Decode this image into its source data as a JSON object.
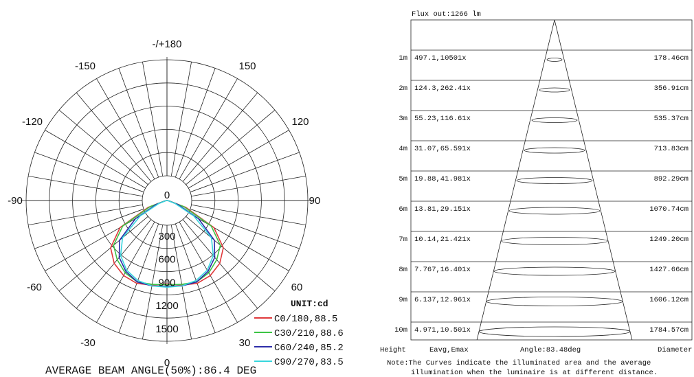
{
  "chart_data": [
    {
      "type": "polar",
      "angle_labels": [
        {
          "angle": 180,
          "text": "-/+180"
        },
        {
          "angle": 150,
          "text": "150"
        },
        {
          "angle": -150,
          "text": "-150"
        },
        {
          "angle": 120,
          "text": "120"
        },
        {
          "angle": -120,
          "text": "-120"
        },
        {
          "angle": 90,
          "text": "90"
        },
        {
          "angle": -90,
          "text": "-90"
        },
        {
          "angle": 60,
          "text": "60"
        },
        {
          "angle": -60,
          "text": "-60"
        },
        {
          "angle": 30,
          "text": "30"
        },
        {
          "angle": -30,
          "text": "-30"
        },
        {
          "angle": 0,
          "text": "0"
        }
      ],
      "radial_ticks": [
        {
          "value": 0,
          "text": "0"
        },
        {
          "value": 300,
          "text": "300"
        },
        {
          "value": 600,
          "text": "600"
        },
        {
          "value": 900,
          "text": "900"
        },
        {
          "value": 1200,
          "text": "1200"
        },
        {
          "value": 1500,
          "text": "1500"
        }
      ],
      "unit_label": "UNIT:cd",
      "footer": "AVERAGE BEAM ANGLE(50%):86.4 DEG",
      "series": [
        {
          "name": "C0/180,88.5",
          "color": "#e0393b",
          "angles": [
            -90,
            -80,
            -70,
            -60,
            -50,
            -40,
            -30,
            -20,
            -10,
            0,
            10,
            20,
            30,
            40,
            50,
            60,
            70,
            80,
            90
          ],
          "values": [
            0,
            30,
            260,
            700,
            950,
            1060,
            1120,
            1140,
            1110,
            1080,
            1110,
            1140,
            1120,
            1060,
            950,
            700,
            260,
            30,
            0
          ]
        },
        {
          "name": "C30/210,88.6",
          "color": "#3cc444",
          "angles": [
            -90,
            -80,
            -70,
            -60,
            -50,
            -40,
            -30,
            -20,
            -10,
            0,
            10,
            20,
            30,
            40,
            50,
            60,
            70,
            80,
            90
          ],
          "values": [
            0,
            25,
            230,
            660,
            900,
            1000,
            1080,
            1120,
            1100,
            1090,
            1100,
            1120,
            1080,
            1000,
            900,
            660,
            230,
            25,
            0
          ]
        },
        {
          "name": "C60/240,85.2",
          "color": "#2c2ca8",
          "angles": [
            -90,
            -80,
            -70,
            -60,
            -50,
            -40,
            -30,
            -20,
            -10,
            0,
            10,
            20,
            30,
            40,
            50,
            60,
            70,
            80,
            90
          ],
          "values": [
            0,
            20,
            150,
            470,
            800,
            960,
            1060,
            1120,
            1120,
            1110,
            1120,
            1120,
            1060,
            960,
            800,
            470,
            150,
            20,
            0
          ]
        },
        {
          "name": "C90/270,83.5",
          "color": "#37d6dd",
          "angles": [
            -90,
            -80,
            -70,
            -60,
            -50,
            -40,
            -30,
            -20,
            -10,
            0,
            10,
            20,
            30,
            40,
            50,
            60,
            70,
            80,
            90
          ],
          "values": [
            0,
            15,
            110,
            400,
            750,
            930,
            1040,
            1100,
            1120,
            1120,
            1120,
            1100,
            1040,
            930,
            750,
            400,
            110,
            15,
            0
          ]
        }
      ]
    },
    {
      "type": "table",
      "title": "Flux out:1266 lm",
      "rows": [
        {
          "height": "1m",
          "values": "497.1,10501x",
          "diameter": "178.46cm"
        },
        {
          "height": "2m",
          "values": "124.3,262.41x",
          "diameter": "356.91cm"
        },
        {
          "height": "3m",
          "values": "55.23,116.61x",
          "diameter": "535.37cm"
        },
        {
          "height": "4m",
          "values": "31.07,65.591x",
          "diameter": "713.83cm"
        },
        {
          "height": "5m",
          "values": "19.88,41.981x",
          "diameter": "892.29cm"
        },
        {
          "height": "6m",
          "values": "13.81,29.151x",
          "diameter": "1070.74cm"
        },
        {
          "height": "7m",
          "values": "10.14,21.421x",
          "diameter": "1249.20cm"
        },
        {
          "height": "8m",
          "values": "7.767,16.401x",
          "diameter": "1427.66cm"
        },
        {
          "height": "9m",
          "values": "6.137,12.961x",
          "diameter": "1606.12cm"
        },
        {
          "height": "10m",
          "values": "4.971,10.501x",
          "diameter": "1784.57cm"
        }
      ],
      "footer": {
        "height": "Height",
        "values": "Eavg,Emax",
        "angle": "Angle:83.48deg",
        "diameter": "Diameter"
      },
      "note_line1": "Note:The Curves indicate the illuminated area and the average",
      "note_line2": "illumination when the luminaire is at different distance."
    }
  ]
}
